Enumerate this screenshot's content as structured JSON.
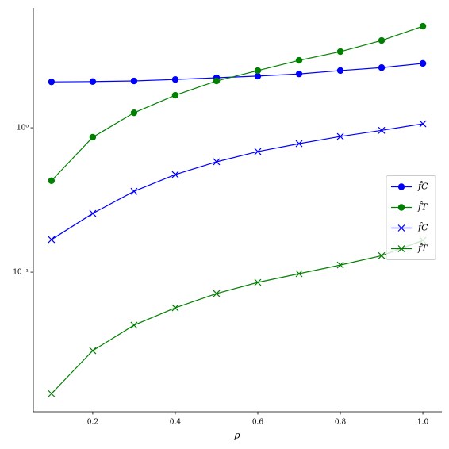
{
  "chart_data": {
    "type": "line",
    "xlabel": "ρ",
    "x": [
      0.1,
      0.2,
      0.3,
      0.4,
      0.5,
      0.6,
      0.7,
      0.8,
      0.9,
      1.0
    ],
    "series": [
      {
        "name": "f̂C",
        "color": "#0000ff",
        "marker": "circle",
        "values": [
          2.08,
          2.09,
          2.11,
          2.16,
          2.22,
          2.28,
          2.36,
          2.49,
          2.61,
          2.79
        ]
      },
      {
        "name": "f̂T",
        "color": "#008000",
        "marker": "circle",
        "values": [
          0.43,
          0.86,
          1.27,
          1.68,
          2.11,
          2.49,
          2.93,
          3.37,
          4.02,
          5.05
        ]
      },
      {
        "name": "f̂C",
        "color": "#0000ff",
        "marker": "x",
        "values": [
          0.168,
          0.255,
          0.363,
          0.474,
          0.581,
          0.684,
          0.776,
          0.87,
          0.96,
          1.065
        ]
      },
      {
        "name": "f̂T",
        "color": "#008000",
        "marker": "x",
        "values": [
          0.0144,
          0.0286,
          0.0429,
          0.0566,
          0.0711,
          0.0849,
          0.0976,
          0.112,
          0.13,
          0.166
        ]
      }
    ],
    "xlim": [
      0.056,
      1.046
    ],
    "xticks": [
      0.2,
      0.4,
      0.6,
      0.8,
      {
        "value": 1.0,
        "label": "1.0"
      }
    ],
    "ylim": [
      0.0108,
      6.76
    ],
    "yticks": [
      {
        "value": 0.1,
        "label": "10⁻¹"
      },
      {
        "value": 1,
        "label": "10⁰"
      }
    ],
    "yscale": "log",
    "legend": "center right"
  }
}
